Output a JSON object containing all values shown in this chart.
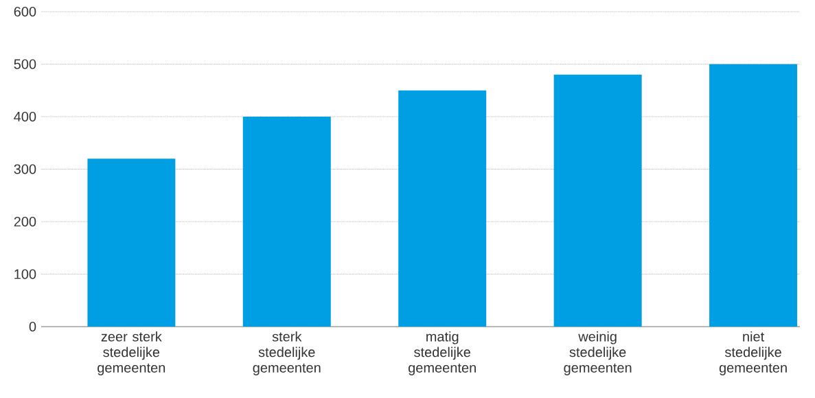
{
  "chart_data": {
    "type": "bar",
    "categories": [
      "zeer sterk stedelijke gemeenten",
      "sterk stedelijke gemeenten",
      "matig stedelijke gemeenten",
      "weinig stedelijke gemeenten",
      "niet stedelijke gemeenten"
    ],
    "values": [
      320,
      400,
      450,
      480,
      500
    ],
    "color": "#009fe3",
    "ylim": [
      0,
      600
    ],
    "yticks": [
      0,
      100,
      200,
      300,
      400,
      500,
      600
    ],
    "grid": "y"
  }
}
